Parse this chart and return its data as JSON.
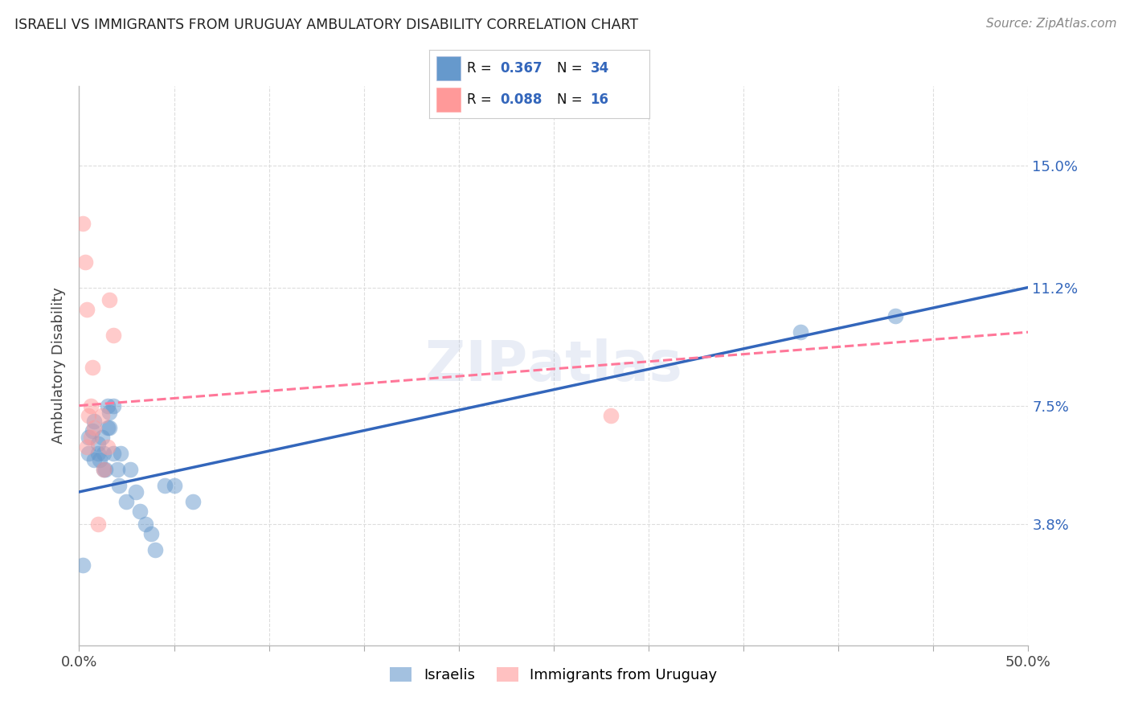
{
  "title": "ISRAELI VS IMMIGRANTS FROM URUGUAY AMBULATORY DISABILITY CORRELATION CHART",
  "source": "Source: ZipAtlas.com",
  "ylabel": "Ambulatory Disability",
  "xlim": [
    0.0,
    0.5
  ],
  "ylim": [
    0.0,
    0.175
  ],
  "yticks": [
    0.038,
    0.075,
    0.112,
    0.15
  ],
  "ytick_labels": [
    "3.8%",
    "7.5%",
    "11.2%",
    "15.0%"
  ],
  "xtick_show": [
    0.0,
    0.5
  ],
  "xtick_labels": [
    "0.0%",
    "50.0%"
  ],
  "legend_labels": [
    "Israelis",
    "Immigrants from Uruguay"
  ],
  "legend_r1": "R = 0.367",
  "legend_n1": "N = 34",
  "legend_r2": "R = 0.088",
  "legend_n2": "N = 16",
  "blue_color": "#6699CC",
  "pink_color": "#FF9999",
  "blue_line_color": "#3366BB",
  "pink_line_color": "#FF7799",
  "israelis_x": [
    0.005,
    0.005,
    0.007,
    0.008,
    0.008,
    0.01,
    0.01,
    0.011,
    0.012,
    0.013,
    0.013,
    0.014,
    0.015,
    0.015,
    0.016,
    0.016,
    0.018,
    0.018,
    0.02,
    0.021,
    0.022,
    0.025,
    0.027,
    0.03,
    0.032,
    0.035,
    0.038,
    0.04,
    0.045,
    0.05,
    0.06,
    0.002,
    0.38,
    0.43
  ],
  "israelis_y": [
    0.06,
    0.065,
    0.067,
    0.07,
    0.058,
    0.063,
    0.06,
    0.058,
    0.065,
    0.06,
    0.055,
    0.055,
    0.075,
    0.068,
    0.068,
    0.073,
    0.06,
    0.075,
    0.055,
    0.05,
    0.06,
    0.045,
    0.055,
    0.048,
    0.042,
    0.038,
    0.035,
    0.03,
    0.05,
    0.05,
    0.045,
    0.025,
    0.098,
    0.103
  ],
  "uruguay_x": [
    0.002,
    0.003,
    0.004,
    0.005,
    0.006,
    0.006,
    0.007,
    0.008,
    0.01,
    0.012,
    0.013,
    0.015,
    0.016,
    0.018,
    0.28,
    0.004
  ],
  "uruguay_y": [
    0.132,
    0.12,
    0.105,
    0.072,
    0.075,
    0.065,
    0.087,
    0.068,
    0.038,
    0.072,
    0.055,
    0.062,
    0.108,
    0.097,
    0.072,
    0.062
  ],
  "blue_trend_x": [
    0.0,
    0.5
  ],
  "blue_trend_y": [
    0.048,
    0.112
  ],
  "pink_trend_x": [
    0.0,
    0.5
  ],
  "pink_trend_y": [
    0.075,
    0.098
  ]
}
